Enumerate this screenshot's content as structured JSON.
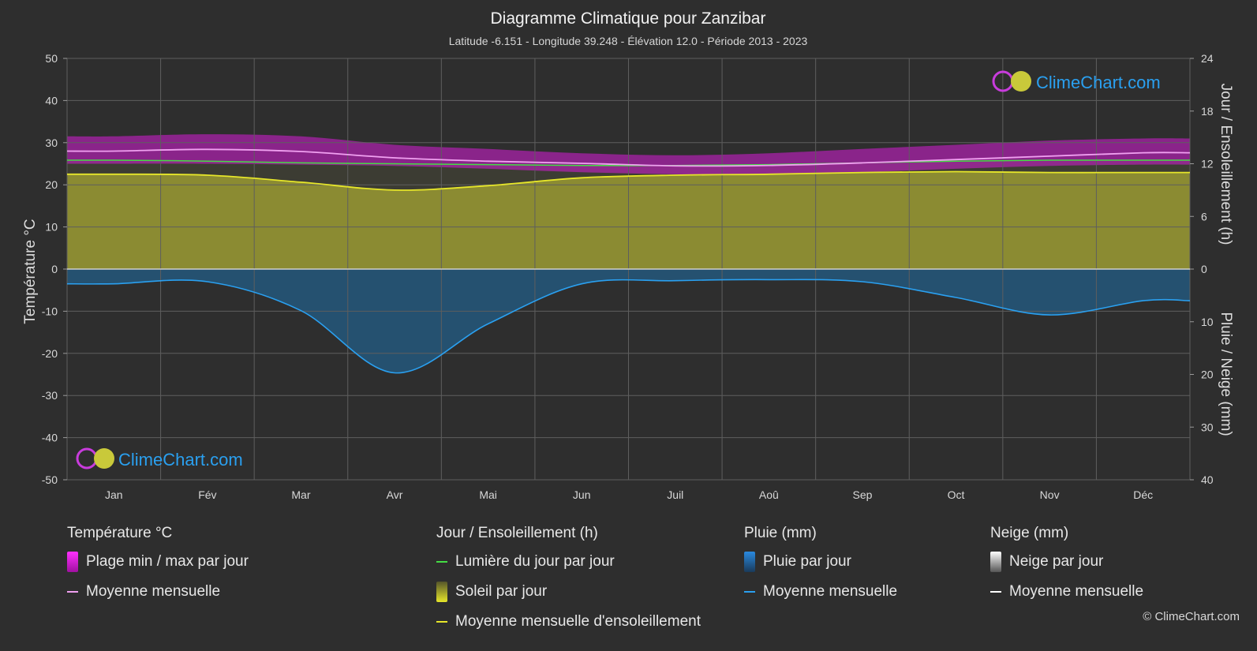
{
  "title": "Diagramme Climatique pour Zanzibar",
  "subtitle": "Latitude -6.151 - Longitude 39.248 - Élévation 12.0 - Période 2013 - 2023",
  "brand": "ClimeChart.com",
  "copyright": "© ClimeChart.com",
  "colors": {
    "background": "#2e2e2e",
    "temp_range": "#c81ec8",
    "temp_mean": "#f0a0f0",
    "daylight": "#44dd44",
    "sunshine_fill": "#8f8f33",
    "sunshine_mean": "#e6e62a",
    "rain_fill": "#1f6fa8",
    "rain_mean": "#2aa0f0",
    "snow_mean": "#ffffff",
    "brand": "#2aa0f0"
  },
  "legend": {
    "temp": {
      "title": "Température °C",
      "range": "Plage min / max par jour",
      "mean": "Moyenne mensuelle"
    },
    "sun": {
      "title": "Jour / Ensoleillement (h)",
      "daylight": "Lumière du jour par jour",
      "sunshine": "Soleil par jour",
      "mean": "Moyenne mensuelle d'ensoleillement"
    },
    "rain": {
      "title": "Pluie (mm)",
      "daily": "Pluie par jour",
      "mean": "Moyenne mensuelle"
    },
    "snow": {
      "title": "Neige (mm)",
      "daily": "Neige par jour",
      "mean": "Moyenne mensuelle"
    }
  },
  "chart_data": {
    "type": "line",
    "title": "Diagramme Climatique pour Zanzibar",
    "categories": [
      "Jan",
      "Fév",
      "Mar",
      "Avr",
      "Mai",
      "Jun",
      "Juil",
      "Aoû",
      "Sep",
      "Oct",
      "Nov",
      "Déc"
    ],
    "y_left": {
      "label": "Température °C",
      "ylim": [
        -50,
        50
      ],
      "ticks": [
        50,
        40,
        30,
        20,
        10,
        0,
        -10,
        -20,
        -30,
        -40,
        -50
      ]
    },
    "y_right_top": {
      "label": "Jour / Ensoleillement (h)",
      "range": [
        0,
        24
      ],
      "ticks": [
        24,
        18,
        12,
        6,
        0
      ]
    },
    "y_right_bottom": {
      "label": "Pluie / Neige (mm)",
      "range": [
        0,
        40
      ],
      "ticks": [
        10,
        20,
        30,
        40
      ]
    },
    "grid": true,
    "series": [
      {
        "name": "Moyenne mensuelle",
        "group": "temperature",
        "unit": "°C",
        "values": [
          28.0,
          28.4,
          27.9,
          26.4,
          25.6,
          25.1,
          24.5,
          24.6,
          25.2,
          26.0,
          26.8,
          27.6
        ]
      },
      {
        "name": "Plage min / max par jour",
        "group": "temperature",
        "unit": "°C",
        "min": [
          25.0,
          25.0,
          24.8,
          24.5,
          23.8,
          23.0,
          22.5,
          22.5,
          23.0,
          23.8,
          24.5,
          24.8
        ],
        "max": [
          31.5,
          32.0,
          31.5,
          29.5,
          28.5,
          27.5,
          27.0,
          27.5,
          28.5,
          29.5,
          30.5,
          31.0
        ]
      },
      {
        "name": "Lumière du jour par jour",
        "group": "sun",
        "unit": "h",
        "values": [
          12.4,
          12.3,
          12.1,
          12.0,
          11.9,
          11.8,
          11.8,
          11.9,
          12.1,
          12.3,
          12.4,
          12.4
        ]
      },
      {
        "name": "Moyenne mensuelle d'ensoleillement",
        "group": "sun",
        "unit": "h",
        "values": [
          10.8,
          10.7,
          9.9,
          9.0,
          9.5,
          10.4,
          10.7,
          10.8,
          11.0,
          11.1,
          11.0,
          11.0
        ]
      },
      {
        "name": "Moyenne mensuelle",
        "group": "rain",
        "unit": "mm",
        "values": [
          2.8,
          2.4,
          7.9,
          19.7,
          10.4,
          2.8,
          2.2,
          2.0,
          2.4,
          5.4,
          8.7,
          6.0
        ]
      },
      {
        "name": "Moyenne mensuelle",
        "group": "snow",
        "unit": "mm",
        "values": [
          0,
          0,
          0,
          0,
          0,
          0,
          0,
          0,
          0,
          0,
          0,
          0
        ]
      }
    ]
  }
}
